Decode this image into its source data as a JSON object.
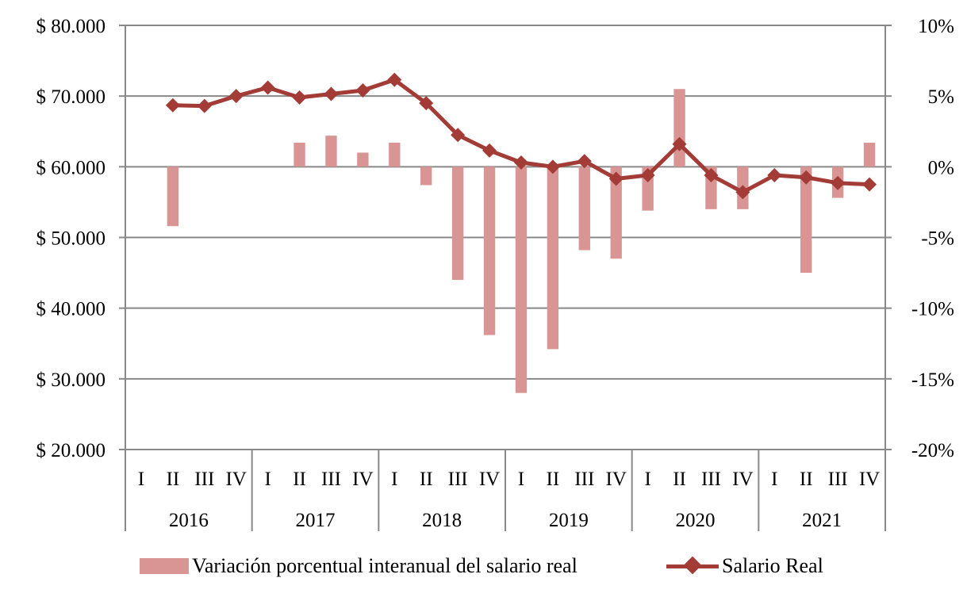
{
  "chart_data": {
    "type": "bar+line",
    "title": "",
    "left_axis": {
      "ticks": [
        "$ 80.000",
        "$ 70.000",
        "$ 60.000",
        "$ 50.000",
        "$ 40.000",
        "$ 30.000",
        "$ 20.000"
      ],
      "range": [
        20000,
        80000
      ]
    },
    "right_axis": {
      "ticks": [
        "10%",
        "5%",
        "0%",
        "-5%",
        "-10%",
        "-15%",
        "-20%"
      ],
      "range": [
        -20,
        10
      ]
    },
    "quarters": [
      "I",
      "II",
      "III",
      "IV"
    ],
    "years": [
      "2016",
      "2017",
      "2018",
      "2019",
      "2020",
      "2021"
    ],
    "series": [
      {
        "name": "Variación porcentual interanual del salario real",
        "type": "bar",
        "axis": "right",
        "color": "#d99594",
        "values": [
          null,
          -4.2,
          null,
          null,
          null,
          1.7,
          2.2,
          1.0,
          1.7,
          -1.3,
          -8.0,
          -11.9,
          -16.0,
          -12.9,
          -5.9,
          -6.5,
          -3.1,
          5.5,
          -3.0,
          -3.0,
          null,
          -7.5,
          -2.2,
          1.7
        ]
      },
      {
        "name": "Salario Real",
        "type": "line",
        "axis": "left",
        "color": "#a33b36",
        "values": [
          null,
          68700,
          68600,
          70000,
          71200,
          69800,
          70300,
          70800,
          72300,
          69000,
          64500,
          62300,
          60600,
          60000,
          60800,
          58300,
          58800,
          63200,
          58800,
          56400,
          58800,
          58500,
          57700,
          57500
        ]
      }
    ],
    "grid": true,
    "legend_position": "bottom"
  }
}
